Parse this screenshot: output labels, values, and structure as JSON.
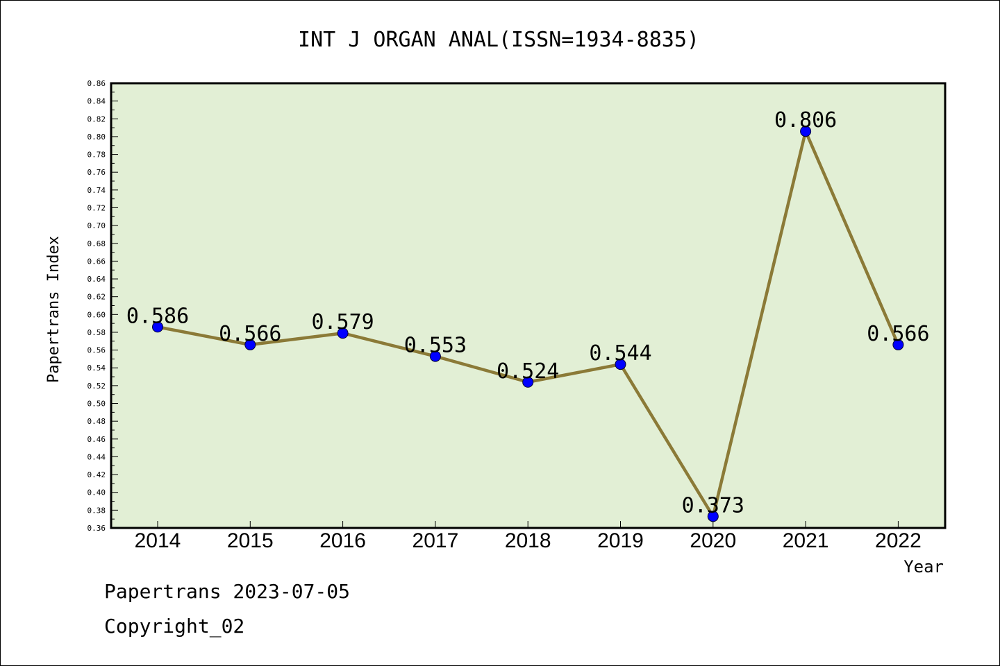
{
  "chart_data": {
    "type": "line",
    "title": "INT J ORGAN ANAL(ISSN=1934-8835)",
    "xlabel": "Year",
    "ylabel": "Papertrans Index",
    "categories": [
      "2014",
      "2015",
      "2016",
      "2017",
      "2018",
      "2019",
      "2020",
      "2021",
      "2022"
    ],
    "values": [
      0.586,
      0.566,
      0.579,
      0.553,
      0.524,
      0.544,
      0.373,
      0.806,
      0.566
    ],
    "data_labels": [
      "0.586",
      "0.566",
      "0.579",
      "0.553",
      "0.524",
      "0.544",
      "0.373",
      "0.806",
      "0.566"
    ],
    "ylim": [
      0.36,
      0.86
    ],
    "yticks": [
      "0.36",
      "0.38",
      "0.40",
      "0.42",
      "0.44",
      "0.46",
      "0.48",
      "0.50",
      "0.52",
      "0.54",
      "0.56",
      "0.58",
      "0.60",
      "0.62",
      "0.64",
      "0.66",
      "0.68",
      "0.70",
      "0.72",
      "0.74",
      "0.76",
      "0.78",
      "0.80",
      "0.82",
      "0.84",
      "0.86"
    ],
    "grid": false,
    "colors": {
      "plot_background": "#e2efd5",
      "line": "#8b7a37",
      "marker": "#0000ff"
    }
  },
  "footer": {
    "date_line": "Papertrans 2023-07-05",
    "copyright": "Copyright_02"
  }
}
